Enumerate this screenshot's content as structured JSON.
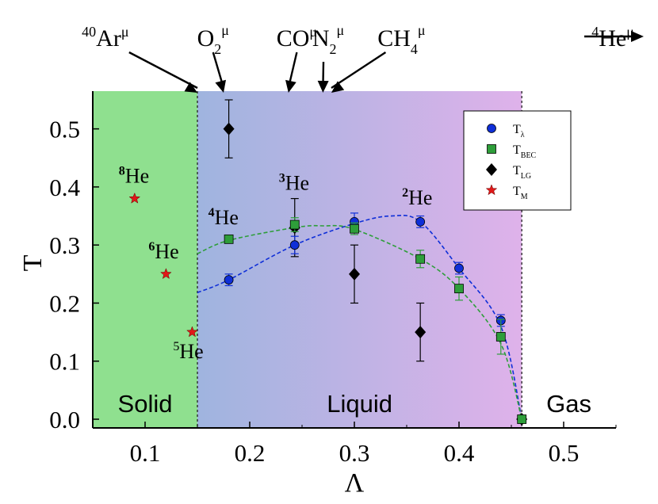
{
  "chart_data": {
    "type": "scatter",
    "xlabel": "Λ",
    "ylabel": "T",
    "xlim": [
      0.05,
      0.55
    ],
    "ylim": [
      -0.015,
      0.565
    ],
    "x_ticks": [
      "0.1",
      "0.2",
      "0.3",
      "0.4",
      "0.5"
    ],
    "x_tick_values": [
      0.1,
      0.2,
      0.3,
      0.4,
      0.5
    ],
    "y_ticks": [
      "0.0",
      "0.1",
      "0.2",
      "0.3",
      "0.4",
      "0.5"
    ],
    "y_tick_values": [
      0.0,
      0.1,
      0.2,
      0.3,
      0.4,
      0.5
    ],
    "grid": false,
    "legend_position": "top-right",
    "regions": [
      {
        "label": "Solid",
        "x_from": 0.05,
        "x_to": 0.15,
        "color": "#8fe08f"
      },
      {
        "label": "Liquid",
        "x_from": 0.15,
        "x_to": 0.46,
        "color_start": "#9fb4df",
        "color_end": "#dfb2ea"
      },
      {
        "label": "Gas",
        "x_from": 0.46,
        "x_to": 0.55,
        "color": "#ffffff"
      }
    ],
    "boundaries": [
      0.15,
      0.46
    ],
    "series": [
      {
        "name": "T_λ",
        "name_main": "T",
        "name_sub": "λ",
        "marker": "circle",
        "color": "#0f2fd8",
        "points": [
          {
            "x": 0.18,
            "y": 0.24,
            "err": 0.01
          },
          {
            "x": 0.243,
            "y": 0.3,
            "err": 0.015
          },
          {
            "x": 0.3,
            "y": 0.34,
            "err": 0.015
          },
          {
            "x": 0.363,
            "y": 0.34,
            "err": 0.01
          },
          {
            "x": 0.4,
            "y": 0.26,
            "err": 0.01
          },
          {
            "x": 0.44,
            "y": 0.17,
            "err": 0.01
          },
          {
            "x": 0.46,
            "y": 0.0,
            "err": 0
          }
        ],
        "fit": [
          [
            0.15,
            0.218
          ],
          [
            0.18,
            0.24
          ],
          [
            0.243,
            0.3
          ],
          [
            0.3,
            0.337
          ],
          [
            0.335,
            0.35
          ],
          [
            0.363,
            0.34
          ],
          [
            0.4,
            0.26
          ],
          [
            0.44,
            0.16
          ],
          [
            0.46,
            0.0
          ]
        ]
      },
      {
        "name": "T_BEC",
        "name_main": "T",
        "name_sub": "BEC",
        "marker": "square",
        "color": "#2e9e3a",
        "points": [
          {
            "x": 0.18,
            "y": 0.31,
            "err": 0
          },
          {
            "x": 0.243,
            "y": 0.335,
            "err": 0.012
          },
          {
            "x": 0.3,
            "y": 0.328,
            "err": 0.01
          },
          {
            "x": 0.363,
            "y": 0.276,
            "err": 0.015
          },
          {
            "x": 0.4,
            "y": 0.225,
            "err": 0.02
          },
          {
            "x": 0.44,
            "y": 0.142,
            "err": 0.03
          },
          {
            "x": 0.46,
            "y": 0.0,
            "err": 0
          }
        ],
        "fit": [
          [
            0.15,
            0.285
          ],
          [
            0.18,
            0.308
          ],
          [
            0.243,
            0.33
          ],
          [
            0.27,
            0.333
          ],
          [
            0.3,
            0.327
          ],
          [
            0.363,
            0.276
          ],
          [
            0.4,
            0.225
          ],
          [
            0.44,
            0.13
          ],
          [
            0.46,
            0.0
          ]
        ]
      },
      {
        "name": "T_LG",
        "name_main": "T",
        "name_sub": "LG",
        "marker": "diamond",
        "color": "#000000",
        "points": [
          {
            "x": 0.18,
            "y": 0.5,
            "err": 0.05
          },
          {
            "x": 0.243,
            "y": 0.33,
            "err": 0.05
          },
          {
            "x": 0.3,
            "y": 0.25,
            "err": 0.05
          },
          {
            "x": 0.363,
            "y": 0.15,
            "err": 0.05
          },
          {
            "x": 0.46,
            "y": 0.0,
            "err": 0
          }
        ]
      },
      {
        "name": "T_M",
        "name_main": "T",
        "name_sub": "M",
        "marker": "star",
        "color": "#e01818",
        "points": [
          {
            "x": 0.09,
            "y": 0.38
          },
          {
            "x": 0.12,
            "y": 0.25
          },
          {
            "x": 0.145,
            "y": 0.15
          }
        ]
      }
    ],
    "annotations": {
      "isotopes": [
        {
          "sup": "8",
          "main": "He",
          "x": 0.09,
          "y": 0.38,
          "dx": -20,
          "dy": -20,
          "bold_sup": true
        },
        {
          "sup": "6",
          "main": "He",
          "x": 0.12,
          "y": 0.25,
          "dx": -22,
          "dy": -20,
          "bold_sup": true
        },
        {
          "sup": "5",
          "main": "He",
          "x": 0.145,
          "y": 0.15,
          "dx": -24,
          "dy": 33,
          "bold_sup": false
        },
        {
          "sup": "4",
          "main": "He",
          "x": 0.18,
          "y": 0.31,
          "dx": -26,
          "dy": -19,
          "bold_sup": true
        },
        {
          "sup": "3",
          "main": "He",
          "x": 0.243,
          "y": 0.335,
          "dx": -20,
          "dy": -44,
          "bold_sup": true
        },
        {
          "sup": "2",
          "main": "He",
          "x": 0.363,
          "y": 0.34,
          "dx": -23,
          "dy": -22,
          "bold_sup": true
        }
      ],
      "molecules": [
        {
          "id": "ar",
          "html_parts": [
            "40",
            "Ar",
            "μ"
          ],
          "label_x": 0.062,
          "arrow_to_x": 0.15
        },
        {
          "id": "o2",
          "html_parts": [
            "",
            "O",
            "μ",
            "2"
          ],
          "label_x": 0.165,
          "arrow_to_x": 0.175
        },
        {
          "id": "co",
          "html_parts": [
            "",
            "CO",
            "μ"
          ],
          "label_x": 0.245,
          "arrow_to_x": 0.237
        },
        {
          "id": "n2",
          "html_parts": [
            "",
            "N",
            "μ",
            "2"
          ],
          "label_x": 0.275,
          "arrow_to_x": 0.27
        },
        {
          "id": "ch4",
          "html_parts": [
            "",
            "CH",
            "μ",
            "4"
          ],
          "label_x": 0.345,
          "arrow_to_x": 0.278
        },
        {
          "id": "he4",
          "html_parts": [
            "4",
            "He",
            "μ"
          ],
          "label_x": 0.547,
          "arrow_to_x": null
        }
      ]
    }
  }
}
